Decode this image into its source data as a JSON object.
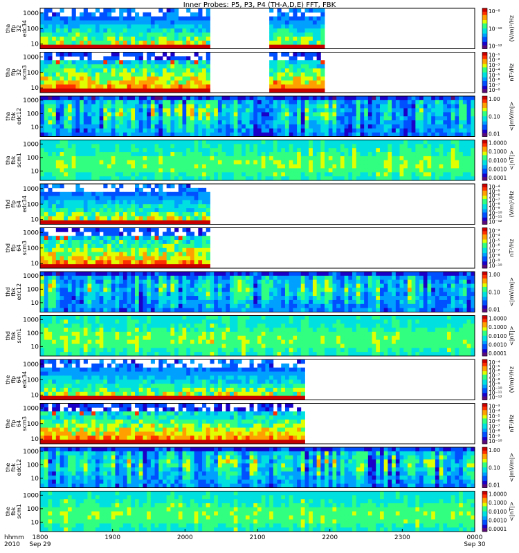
{
  "title": "Inner Probes: P5, P3, P4 (TH-A,D,E) FFT, FBK",
  "colormap": [
    "#ffffff",
    "#5a0a78",
    "#1a00c8",
    "#0050ff",
    "#00a0ff",
    "#00e0e0",
    "#30ff80",
    "#e0ff00",
    "#ffa000",
    "#ff3000",
    "#c80000"
  ],
  "chart_data": {
    "type": "heatmap",
    "title": "Inner Probes: P5, P3, P4 (TH-A,D,E) FFT, FBK",
    "x_axis": {
      "range": [
        "1800",
        "0000"
      ],
      "ticks": [
        "1800",
        "1900",
        "2000",
        "2100",
        "2200",
        "2300",
        "0000"
      ],
      "date_labels": {
        "1800": "Sep 29",
        "0000": "Sep 30"
      },
      "row_labels": [
        "hhmm",
        "2010"
      ]
    },
    "y_axis": {
      "scale": "log",
      "range": [
        5,
        2000
      ],
      "ticks": [
        "10",
        "100",
        "1000"
      ]
    },
    "panels": [
      {
        "label": [
          "tha",
          "ffp",
          "32",
          "edc34"
        ],
        "ylog_range": [
          5,
          2000
        ],
        "cbar_ticks": [
          "10⁻⁸",
          "10⁻¹⁰",
          "10⁻¹²"
        ],
        "cbar_label": "(V/m)²/Hz",
        "style": "ffp_e",
        "segments": [
          [
            0.0,
            0.395
          ],
          [
            0.53,
            0.655
          ]
        ],
        "seed": 11
      },
      {
        "label": [
          "tha",
          "ffp",
          "32",
          "scm3"
        ],
        "ylog_range": [
          5,
          2000
        ],
        "cbar_ticks": [
          "10⁻¹",
          "10⁻²",
          "10⁻³",
          "10⁻⁴",
          "10⁻⁵",
          "10⁻⁶",
          "10⁻⁷",
          "10⁻⁸"
        ],
        "cbar_label": "nT²/Hz",
        "style": "ffp_b",
        "segments": [
          [
            0.0,
            0.395
          ],
          [
            0.53,
            0.655
          ]
        ],
        "seed": 12
      },
      {
        "label": [
          "tha",
          "fbk",
          "edc12"
        ],
        "ylog_range": [
          2,
          2000
        ],
        "cbar_ticks": [
          "1.00",
          "0.10",
          "0.01"
        ],
        "cbar_label": "<|mV/m|>",
        "style": "fbk_e",
        "segments": [
          [
            0.0,
            1.0
          ]
        ],
        "seed": 13
      },
      {
        "label": [
          "tha",
          "fbk",
          "scm1"
        ],
        "ylog_range": [
          2,
          2000
        ],
        "cbar_ticks": [
          "1.0000",
          "0.1000",
          "0.0100",
          "0.0010",
          "0.0001"
        ],
        "cbar_label": "<|nT|>",
        "style": "fbk_b",
        "segments": [
          [
            0.0,
            1.0
          ]
        ],
        "seed": 14
      },
      {
        "label": [
          "thd",
          "ffp",
          "64",
          "edc34"
        ],
        "ylog_range": [
          5,
          2000
        ],
        "cbar_ticks": [
          "10⁻⁴",
          "10⁻⁵",
          "10⁻⁶",
          "10⁻⁷",
          "10⁻⁸",
          "10⁻⁹",
          "10⁻¹⁰",
          "10⁻¹¹",
          "10⁻¹²"
        ],
        "cbar_label": "(V/m)²/Hz",
        "style": "ffp_e",
        "segments": [
          [
            0.0,
            0.395
          ]
        ],
        "seed": 21
      },
      {
        "label": [
          "thd",
          "ffp",
          "64",
          "scm3"
        ],
        "ylog_range": [
          5,
          2000
        ],
        "cbar_ticks": [
          "10⁻³",
          "10⁻⁴",
          "10⁻⁵",
          "10⁻⁶",
          "10⁻⁷",
          "10⁻⁸",
          "10⁻⁹",
          "10⁻¹⁰"
        ],
        "cbar_label": "nT²/Hz",
        "style": "ffp_b",
        "segments": [
          [
            0.0,
            0.395
          ]
        ],
        "seed": 22
      },
      {
        "label": [
          "thd",
          "fbk",
          "edc12"
        ],
        "ylog_range": [
          2,
          2000
        ],
        "cbar_ticks": [
          "1.00",
          "0.10",
          "0.01"
        ],
        "cbar_label": "<|mV/m|>",
        "style": "fbk_e",
        "segments": [
          [
            0.0,
            1.0
          ]
        ],
        "seed": 23
      },
      {
        "label": [
          "thd",
          "fbk",
          "scm1"
        ],
        "ylog_range": [
          2,
          2000
        ],
        "cbar_ticks": [
          "1.0000",
          "0.1000",
          "0.0100",
          "0.0010",
          "0.0001"
        ],
        "cbar_label": "<|nT|>",
        "style": "fbk_b",
        "segments": [
          [
            0.0,
            1.0
          ]
        ],
        "seed": 24
      },
      {
        "label": [
          "the",
          "ffp",
          "64",
          "edc34"
        ],
        "ylog_range": [
          5,
          2000
        ],
        "cbar_ticks": [
          "10⁻⁴",
          "10⁻⁵",
          "10⁻⁶",
          "10⁻⁷",
          "10⁻⁸",
          "10⁻⁹",
          "10⁻¹⁰",
          "10⁻¹¹",
          "10⁻¹²"
        ],
        "cbar_label": "(V/m)²/Hz",
        "style": "ffp_e",
        "segments": [
          [
            0.0,
            0.605
          ]
        ],
        "seed": 31
      },
      {
        "label": [
          "the",
          "ffp",
          "64",
          "scm3"
        ],
        "ylog_range": [
          5,
          2000
        ],
        "cbar_ticks": [
          "10⁻³",
          "10⁻⁴",
          "10⁻⁵",
          "10⁻⁶",
          "10⁻⁷",
          "10⁻⁸",
          "10⁻⁹",
          "10⁻¹⁰"
        ],
        "cbar_label": "nT²/Hz",
        "style": "ffp_b",
        "segments": [
          [
            0.0,
            0.605
          ]
        ],
        "seed": 32
      },
      {
        "label": [
          "the",
          "fbk",
          "edc12"
        ],
        "ylog_range": [
          2,
          2000
        ],
        "cbar_ticks": [
          "1.00",
          "0.10",
          "0.01"
        ],
        "cbar_label": "<|mV/m|>",
        "style": "fbk_e",
        "segments": [
          [
            0.0,
            1.0
          ]
        ],
        "seed": 33
      },
      {
        "label": [
          "the",
          "fbk",
          "scm1"
        ],
        "ylog_range": [
          2,
          2000
        ],
        "cbar_ticks": [
          "1.0000",
          "0.1000",
          "0.0100",
          "0.0010",
          "0.0001"
        ],
        "cbar_label": "<|nT|>",
        "style": "fbk_b",
        "segments": [
          [
            0.0,
            1.0
          ]
        ],
        "seed": 34
      }
    ]
  }
}
